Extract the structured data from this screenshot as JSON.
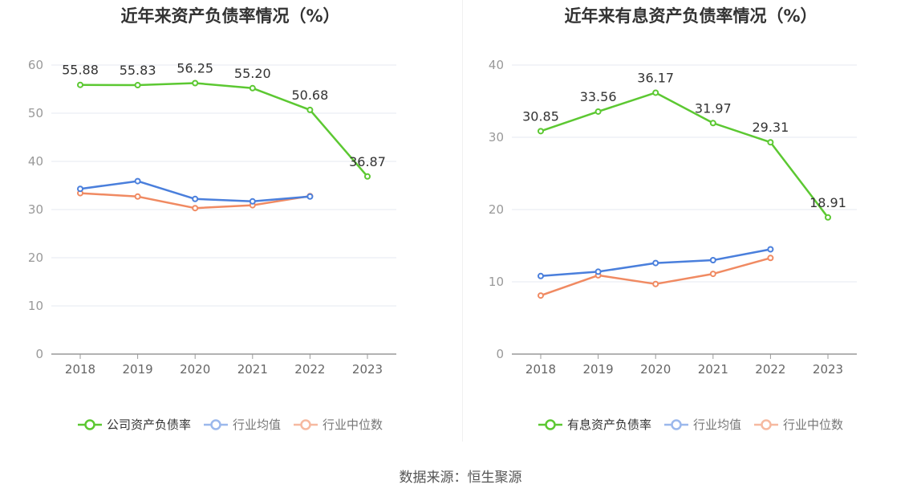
{
  "colors": {
    "company": "#5cc832",
    "industry_avg": "#4a7fdc",
    "industry_median": "#f08a62",
    "axis": "#999999",
    "grid": "#e6e9f2"
  },
  "legend": {
    "industry_avg": "行业均值",
    "industry_median": "行业中位数"
  },
  "source": "数据来源：恒生聚源",
  "chart_data": [
    {
      "type": "line",
      "title": "近年来资产负债率情况（%）",
      "categories": [
        "2018",
        "2019",
        "2020",
        "2021",
        "2022",
        "2023"
      ],
      "ylim": [
        0,
        60
      ],
      "yticks": [
        0,
        10,
        20,
        30,
        40,
        50,
        60
      ],
      "grid": true,
      "legend_position": "bottom",
      "series": [
        {
          "name": "公司资产负债率",
          "key": "company",
          "labels": true,
          "values": [
            55.88,
            55.83,
            56.25,
            55.2,
            50.68,
            36.87
          ],
          "value_labels": [
            "55.88",
            "55.83",
            "56.25",
            "55.20",
            "50.68",
            "36.87"
          ]
        },
        {
          "name": "行业均值",
          "key": "industry_avg",
          "labels": false,
          "values": [
            34.3,
            35.9,
            32.2,
            31.7,
            32.7,
            null
          ]
        },
        {
          "name": "行业中位数",
          "key": "industry_median",
          "labels": false,
          "values": [
            33.4,
            32.7,
            30.3,
            30.9,
            32.8,
            null
          ]
        }
      ]
    },
    {
      "type": "line",
      "title": "近年来有息资产负债率情况（%）",
      "categories": [
        "2018",
        "2019",
        "2020",
        "2021",
        "2022",
        "2023"
      ],
      "ylim": [
        0,
        40
      ],
      "yticks": [
        0,
        10,
        20,
        30,
        40
      ],
      "grid": true,
      "legend_position": "bottom",
      "series": [
        {
          "name": "有息资产负债率",
          "key": "company",
          "labels": true,
          "values": [
            30.85,
            33.56,
            36.17,
            31.97,
            29.31,
            18.91
          ],
          "value_labels": [
            "30.85",
            "33.56",
            "36.17",
            "31.97",
            "29.31",
            "18.91"
          ]
        },
        {
          "name": "行业均值",
          "key": "industry_avg",
          "labels": false,
          "values": [
            10.8,
            11.4,
            12.6,
            13.0,
            14.5,
            null
          ]
        },
        {
          "name": "行业中位数",
          "key": "industry_median",
          "labels": false,
          "values": [
            8.1,
            10.9,
            9.7,
            11.1,
            13.3,
            null
          ]
        }
      ]
    }
  ]
}
